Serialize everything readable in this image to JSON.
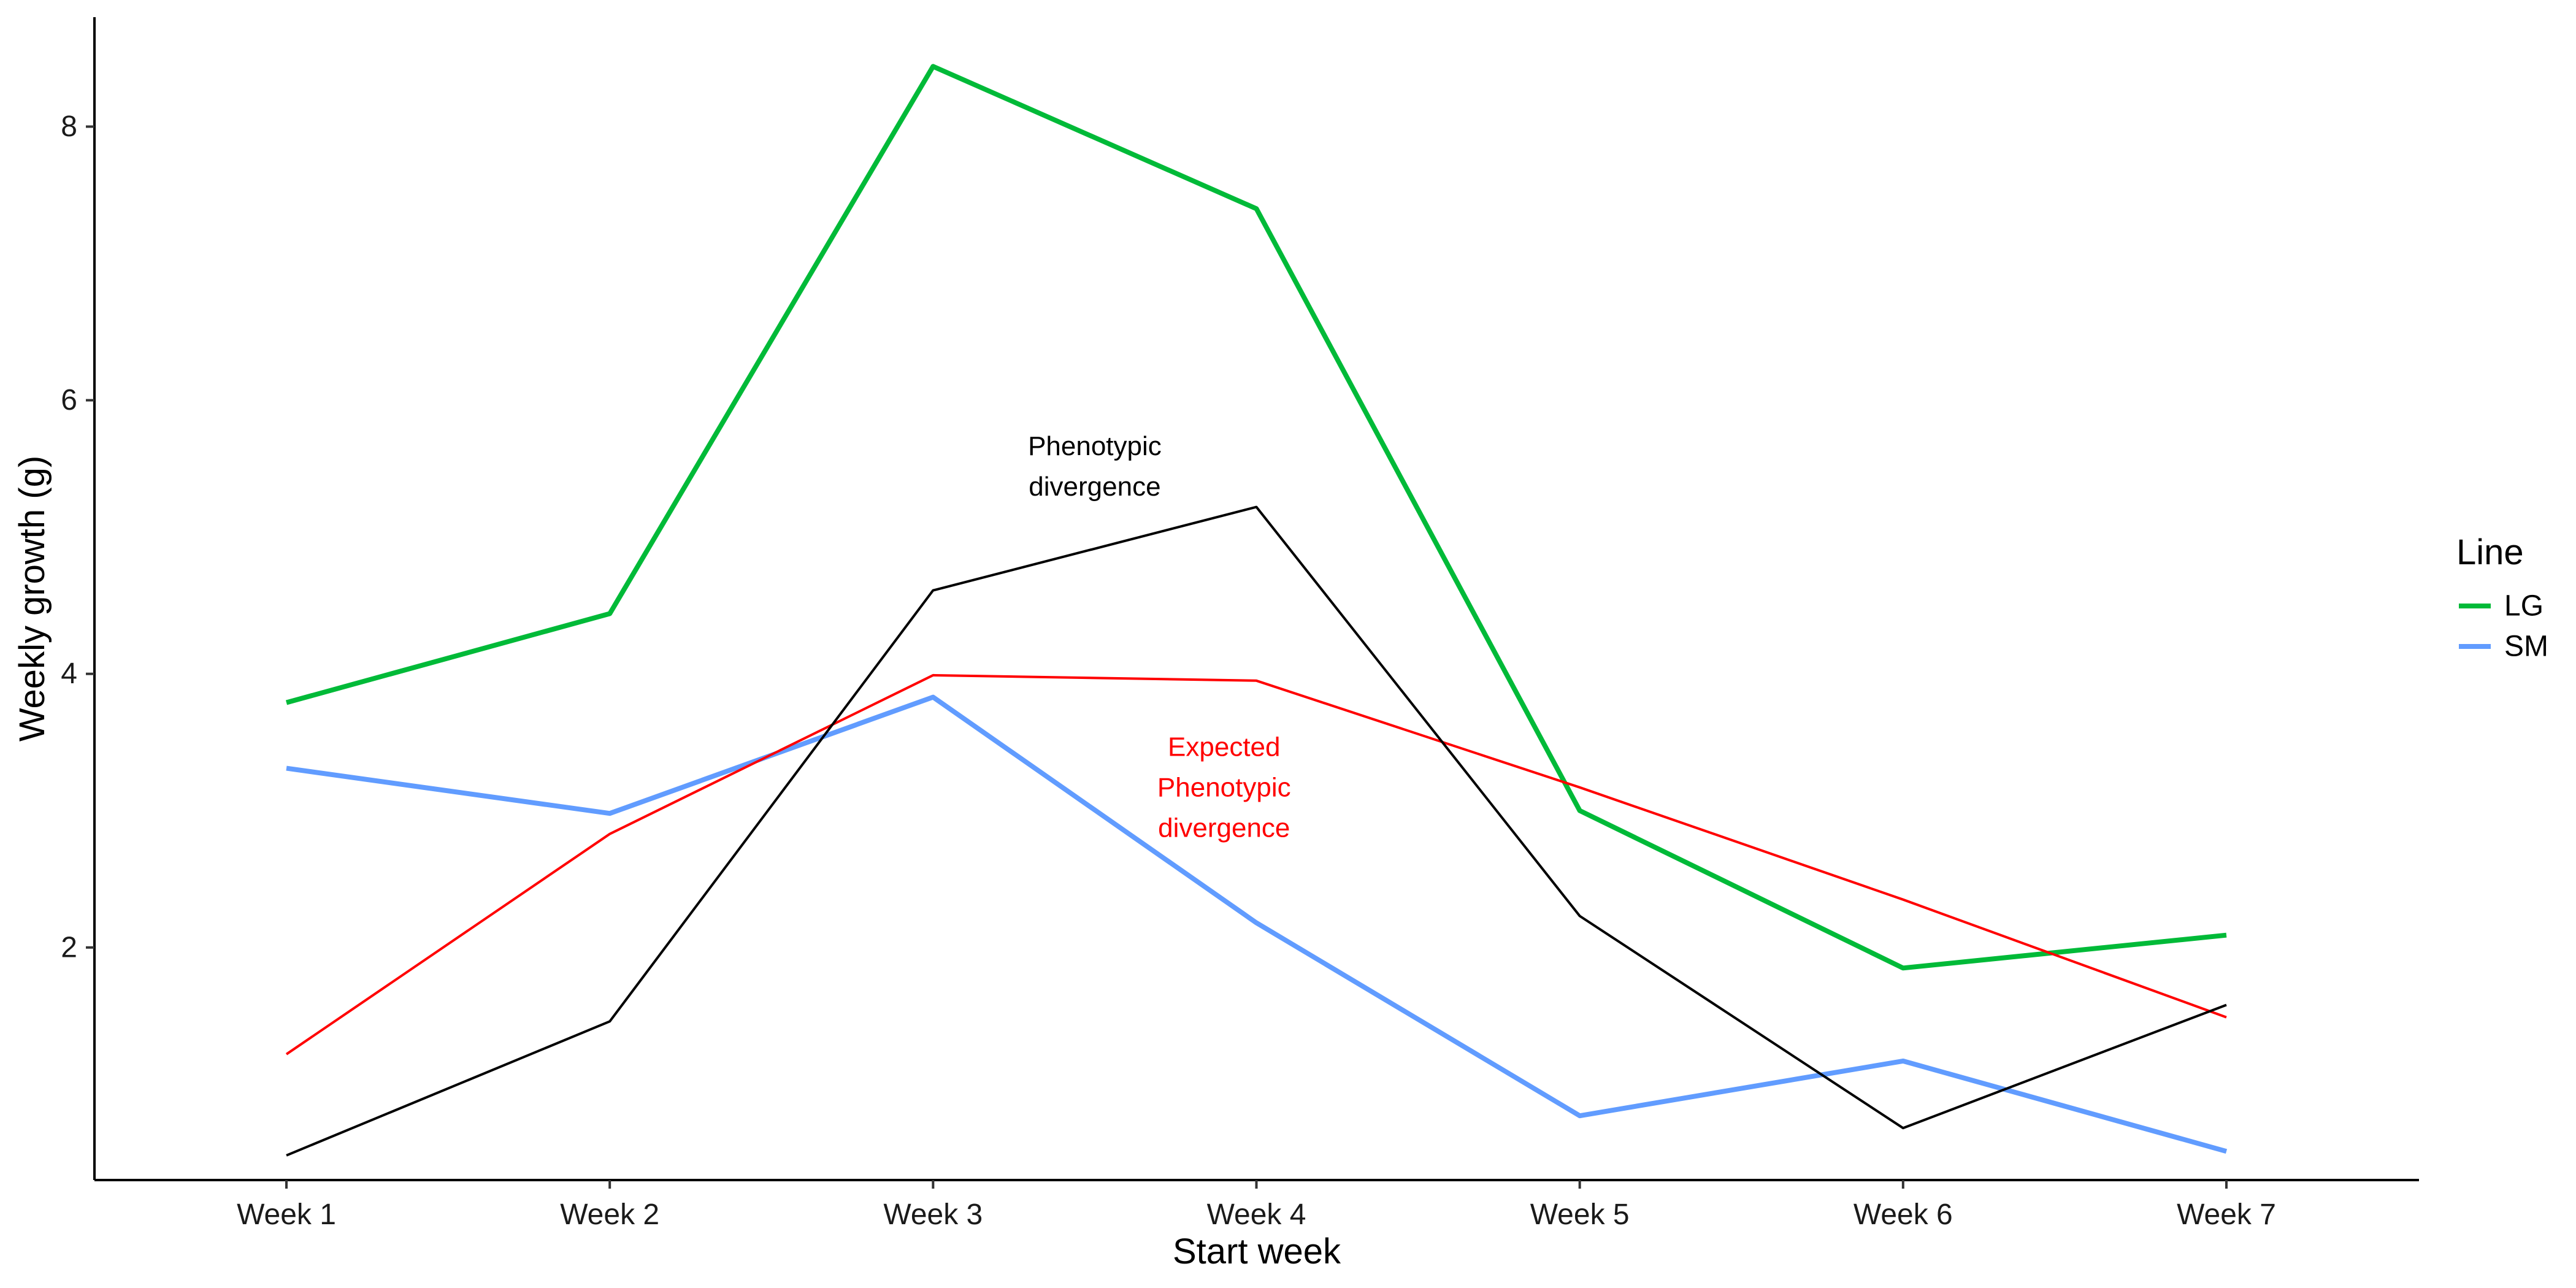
{
  "chart_data": {
    "type": "line",
    "x": [
      "Week 1",
      "Week 2",
      "Week 3",
      "Week 4",
      "Week 5",
      "Week 6",
      "Week 7"
    ],
    "xlabel": "Start week",
    "ylabel": "Weekly growth (g)",
    "ylim": [
      0.3,
      8.8
    ],
    "yticks": [
      2,
      4,
      6,
      8
    ],
    "grid": false,
    "legend": {
      "title": "Line",
      "placement": "right",
      "entries": [
        {
          "label": "LG",
          "color": "#00BA38"
        },
        {
          "label": "SM",
          "color": "#619CFF"
        }
      ]
    },
    "series": [
      {
        "name": "LG",
        "color": "#00BA38",
        "values": [
          3.79,
          4.44,
          8.44,
          7.4,
          3.0,
          1.85,
          2.09
        ]
      },
      {
        "name": "SM",
        "color": "#619CFF",
        "values": [
          3.31,
          2.98,
          3.83,
          2.18,
          0.77,
          1.17,
          0.51
        ]
      },
      {
        "color": "#FF0000",
        "values": [
          1.22,
          2.83,
          3.99,
          3.95,
          3.17,
          2.35,
          1.49
        ]
      },
      {
        "color": "#000000",
        "values": [
          0.48,
          1.46,
          4.61,
          5.22,
          2.23,
          0.68,
          1.58
        ]
      }
    ],
    "annotations": [
      {
        "lines": [
          "Phenotypic",
          "divergence"
        ],
        "color": "#000000",
        "x": 3.5,
        "y": 5.6
      },
      {
        "lines": [
          "Expected",
          "Phenotypic",
          "divergence"
        ],
        "color": "#FF0000",
        "x": 3.9,
        "y": 3.4
      }
    ]
  }
}
